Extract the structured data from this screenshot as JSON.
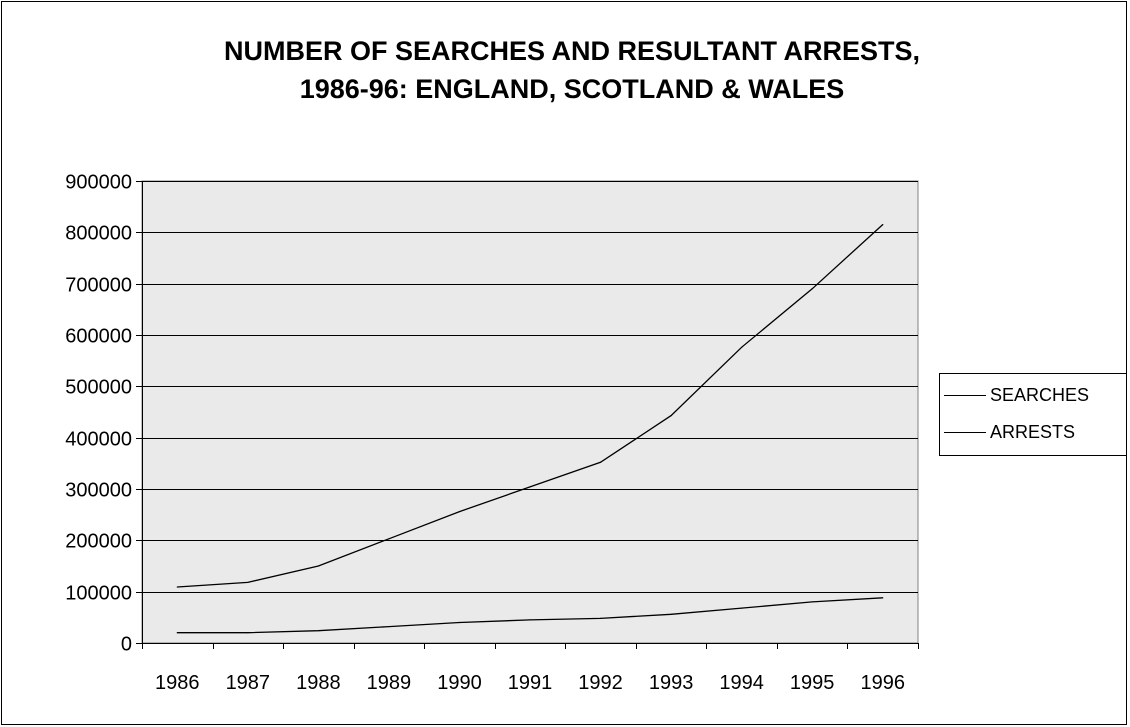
{
  "chart_data": {
    "type": "line",
    "title_lines": [
      "NUMBER OF SEARCHES AND RESULTANT ARRESTS,",
      "1986-96:  ENGLAND, SCOTLAND & WALES"
    ],
    "xlabel": "",
    "ylabel": "",
    "categories": [
      "1986",
      "1987",
      "1988",
      "1989",
      "1990",
      "1991",
      "1992",
      "1993",
      "1994",
      "1995",
      "1996"
    ],
    "ylim": [
      0,
      900000
    ],
    "yticks": [
      "0",
      "100000",
      "200000",
      "300000",
      "400000",
      "500000",
      "600000",
      "700000",
      "800000",
      "900000"
    ],
    "grid": true,
    "legend_position": "right",
    "series": [
      {
        "name": "SEARCHES",
        "values": [
          109000,
          118000,
          150000,
          203000,
          256000,
          304000,
          352000,
          443000,
          576000,
          690000,
          815000
        ]
      },
      {
        "name": "ARRESTS",
        "values": [
          20000,
          20000,
          24000,
          32000,
          40000,
          45000,
          48000,
          56000,
          68000,
          80000,
          88000
        ]
      }
    ],
    "colors": {
      "line": "#000000",
      "plot_background": "#eaeaea",
      "gridline": "#000000"
    }
  }
}
